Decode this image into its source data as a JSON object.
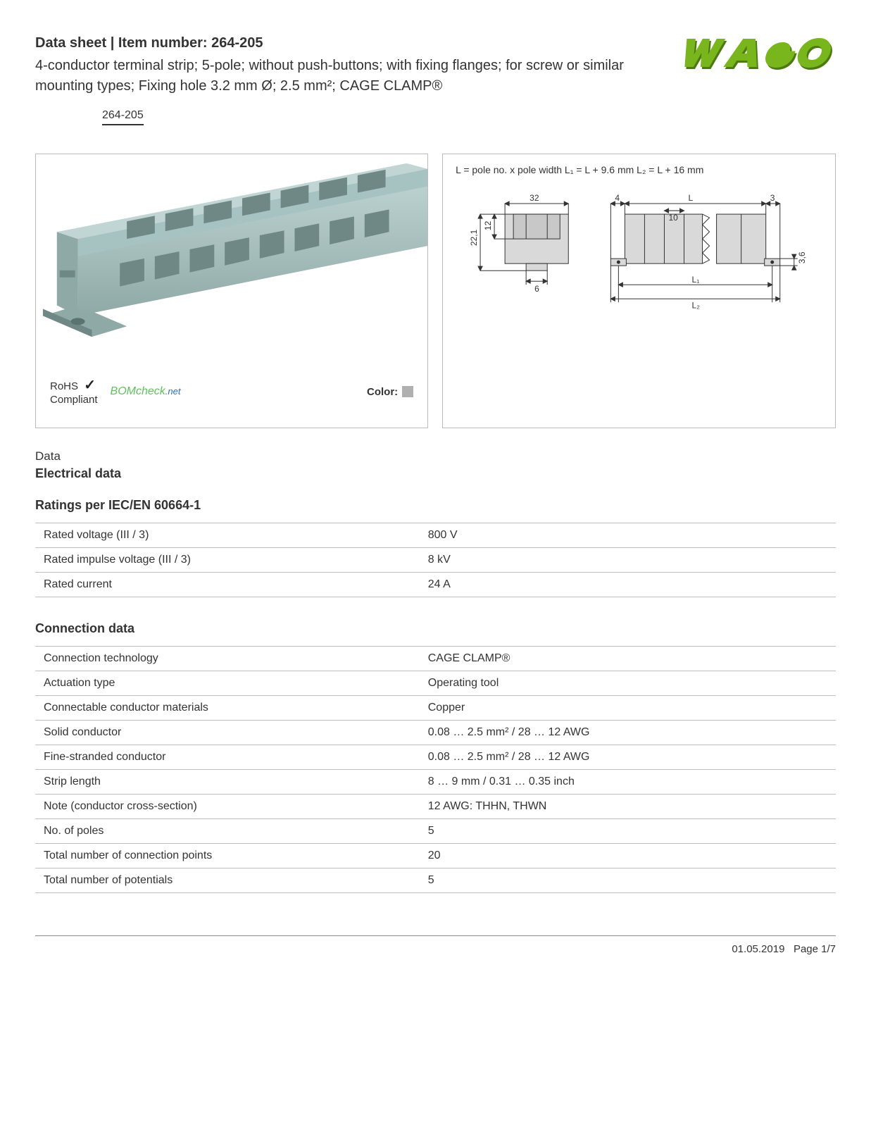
{
  "header": {
    "title_prefix": "Data sheet",
    "title_sep": "  |  ",
    "title_item_label": "Item number:",
    "item_number": "264-205",
    "subtitle": "4-conductor terminal strip; 5-pole; without push-buttons; with fixing flanges; for screw or similar mounting types; Fixing hole 3.2 mm Ø; 2.5 mm²; CAGE CLAMP®",
    "chip": "264-205"
  },
  "logo": {
    "brand": "WAGO",
    "color": "#79b51c",
    "shadow_color": "#4a7a10"
  },
  "product_render": {
    "body_color": "#a7c3c1",
    "body_shadow": "#8fa9a7",
    "body_highlight": "#c1d6d4",
    "slot_dark": "#6f8886"
  },
  "compliance": {
    "rohs_label_1": "RoHS",
    "rohs_label_2": "Compliant",
    "bomcheck_text": "BOMcheck",
    "bomcheck_suffix": ".net",
    "color_label": "Color:",
    "color_swatch": "#b0b0b0"
  },
  "dimensions": {
    "note": "L = pole no. x pole width   L₁ = L + 9.6 mm   L₂ = L + 16 mm",
    "side_width": "32",
    "side_h1": "22,1",
    "side_h2": "12",
    "side_foot": "6",
    "top_left_gap": "4",
    "top_L": "L",
    "top_inner": "10",
    "top_right_gap": "3",
    "right_h": "3,6",
    "L1": "L₁",
    "L2": "L₂",
    "line_color": "#333333",
    "fill_color": "#d9d9d9",
    "bg": "#ffffff"
  },
  "data": {
    "section_label": "Data",
    "electrical_heading": "Electrical data",
    "ratings_heading": "Ratings per IEC/EN 60664-1",
    "ratings_rows": [
      {
        "label": "Rated voltage (III / 3)",
        "value": "800 V"
      },
      {
        "label": "Rated impulse voltage (III / 3)",
        "value": "8 kV"
      },
      {
        "label": "Rated current",
        "value": "24 A"
      }
    ],
    "connection_heading": "Connection data",
    "connection_rows": [
      {
        "label": "Connection technology",
        "value": "CAGE CLAMP®"
      },
      {
        "label": "Actuation type",
        "value": "Operating tool"
      },
      {
        "label": "Connectable conductor materials",
        "value": "Copper"
      },
      {
        "label": "Solid conductor",
        "value": "0.08 … 2.5 mm² / 28 … 12 AWG"
      },
      {
        "label": "Fine-stranded conductor",
        "value": "0.08 … 2.5 mm² / 28 … 12 AWG"
      },
      {
        "label": "Strip length",
        "value": "8 … 9 mm / 0.31 … 0.35 inch"
      },
      {
        "label": "Note (conductor cross-section)",
        "value": "12 AWG: THHN, THWN"
      },
      {
        "label": "No. of poles",
        "value": "5"
      },
      {
        "label": "Total number of connection points",
        "value": "20"
      },
      {
        "label": "Total number of potentials",
        "value": "5"
      }
    ]
  },
  "footer": {
    "date": "01.05.2019",
    "page": "Page 1/7"
  }
}
